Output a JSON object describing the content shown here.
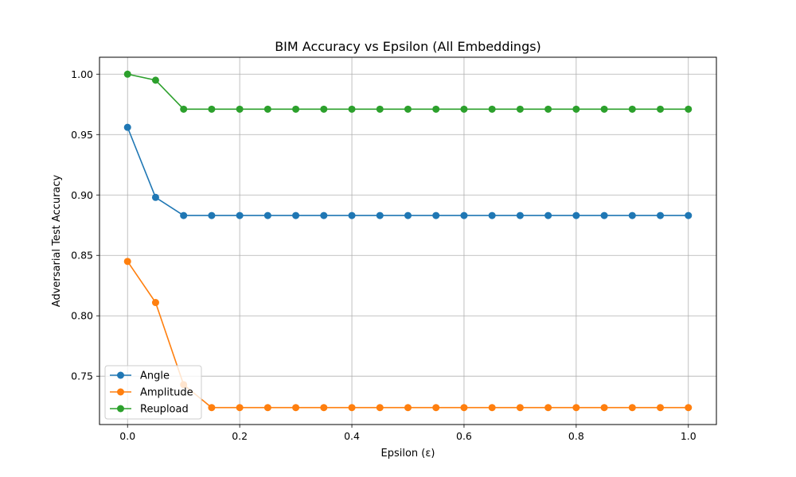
{
  "chart_data": {
    "type": "line",
    "title": "BIM Accuracy vs Epsilon (All Embeddings)",
    "xlabel": "Epsilon (ε)",
    "ylabel": "Adversarial Test Accuracy",
    "xlim": [
      -0.05,
      1.05
    ],
    "ylim": [
      0.71,
      1.014
    ],
    "xticks": [
      0.0,
      0.2,
      0.4,
      0.6,
      0.8,
      1.0
    ],
    "xtick_labels": [
      "0.0",
      "0.2",
      "0.4",
      "0.6",
      "0.8",
      "1.0"
    ],
    "yticks": [
      0.75,
      0.8,
      0.85,
      0.9,
      0.95,
      1.0
    ],
    "ytick_labels": [
      "0.75",
      "0.80",
      "0.85",
      "0.90",
      "0.95",
      "1.00"
    ],
    "grid": true,
    "legend_position": "lower-left",
    "x": [
      0.0,
      0.05,
      0.1,
      0.15,
      0.2,
      0.25,
      0.3,
      0.35,
      0.4,
      0.45,
      0.5,
      0.55,
      0.6,
      0.65,
      0.7,
      0.75,
      0.8,
      0.85,
      0.9,
      0.95,
      1.0
    ],
    "series": [
      {
        "name": "Angle",
        "color": "#1f77b4",
        "values": [
          0.956,
          0.898,
          0.883,
          0.883,
          0.883,
          0.883,
          0.883,
          0.883,
          0.883,
          0.883,
          0.883,
          0.883,
          0.883,
          0.883,
          0.883,
          0.883,
          0.883,
          0.883,
          0.883,
          0.883,
          0.883
        ]
      },
      {
        "name": "Amplitude",
        "color": "#ff7f0e",
        "values": [
          0.845,
          0.811,
          0.743,
          0.724,
          0.724,
          0.724,
          0.724,
          0.724,
          0.724,
          0.724,
          0.724,
          0.724,
          0.724,
          0.724,
          0.724,
          0.724,
          0.724,
          0.724,
          0.724,
          0.724,
          0.724
        ]
      },
      {
        "name": "Reupload",
        "color": "#2ca02c",
        "values": [
          1.0,
          0.995,
          0.971,
          0.971,
          0.971,
          0.971,
          0.971,
          0.971,
          0.971,
          0.971,
          0.971,
          0.971,
          0.971,
          0.971,
          0.971,
          0.971,
          0.971,
          0.971,
          0.971,
          0.971,
          0.971
        ]
      }
    ]
  }
}
